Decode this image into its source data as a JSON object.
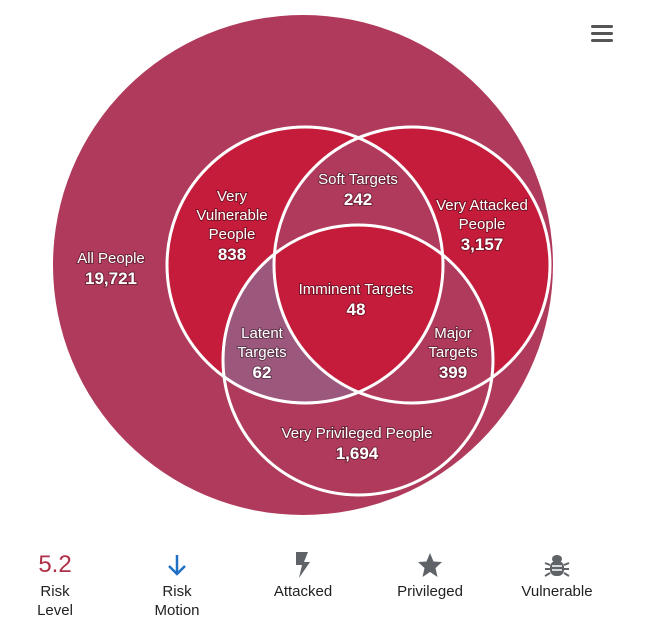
{
  "venn": {
    "regions": [
      {
        "id": "all-people",
        "label_lines": [
          "All People"
        ],
        "value": "19,721"
      },
      {
        "id": "very-vulnerable-people",
        "label_lines": [
          "Very",
          "Vulnerable",
          "People"
        ],
        "value": "838"
      },
      {
        "id": "soft-targets",
        "label_lines": [
          "Soft Targets"
        ],
        "value": "242"
      },
      {
        "id": "very-attacked-people",
        "label_lines": [
          "Very Attacked",
          "People"
        ],
        "value": "3,157"
      },
      {
        "id": "imminent-targets",
        "label_lines": [
          "Imminent Targets"
        ],
        "value": "48"
      },
      {
        "id": "latent-targets",
        "label_lines": [
          "Latent",
          "Targets"
        ],
        "value": "62"
      },
      {
        "id": "major-targets",
        "label_lines": [
          "Major",
          "Targets"
        ],
        "value": "399"
      },
      {
        "id": "very-privileged-people",
        "label_lines": [
          "Very Privileged People"
        ],
        "value": "1,694"
      }
    ],
    "colors": {
      "all_people": "#b03a5b",
      "vulnerable": "#c41c3a",
      "attacked": "#c41c3a",
      "privileged": "#b03a5b",
      "latent": "#9c587c",
      "outline": "#ffffff"
    }
  },
  "legend": {
    "risk_level": {
      "value": "5.2",
      "label_lines": [
        "Risk",
        "Level"
      ],
      "color": "#b0304a"
    },
    "risk_motion": {
      "label_lines": [
        "Risk",
        "Motion"
      ],
      "icon": "arrow-down-icon",
      "color": "#1f6fc4"
    },
    "attacked": {
      "label": "Attacked",
      "icon": "lightning-bolt-icon",
      "color": "#5f6368"
    },
    "privileged": {
      "label": "Privileged",
      "icon": "star-icon",
      "color": "#5f6368"
    },
    "vulnerable": {
      "label": "Vulnerable",
      "icon": "bug-icon",
      "color": "#5f6368"
    }
  }
}
